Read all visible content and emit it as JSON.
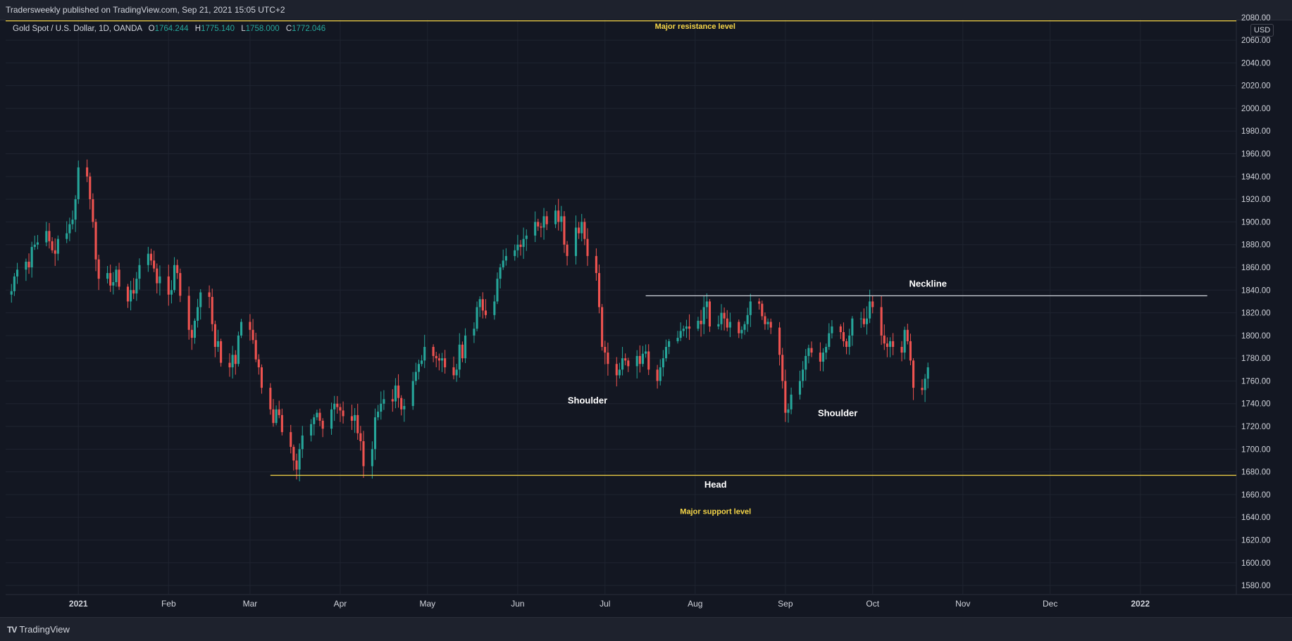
{
  "header": {
    "published_text": "Tradersweekly published on TradingView.com, Sep 21, 2021 15:05 UTC+2"
  },
  "legend": {
    "symbol": "Gold Spot / U.S. Dollar, 1D, OANDA",
    "open_label": "O",
    "open": "1764.244",
    "high_label": "H",
    "high": "1775.140",
    "low_label": "L",
    "low": "1758.000",
    "close_label": "C",
    "close": "1772.046"
  },
  "currency": "USD",
  "footer": {
    "brand": "TradingView"
  },
  "colors": {
    "up": "#26a69a",
    "down": "#ef5350",
    "resistance": "#f5d547",
    "support": "#f5d547",
    "neckline": "#d1d4dc",
    "background": "#131722",
    "grid": "#1f2430"
  },
  "chart_data": {
    "type": "candlestick",
    "title": "",
    "xlabel": "",
    "ylabel": "",
    "ylim": [
      1572,
      2078
    ],
    "xlim": [
      "2020-12-07",
      "2022-02-03"
    ],
    "y_ticks": [
      1580,
      1600,
      1620,
      1640,
      1660,
      1680,
      1700,
      1720,
      1740,
      1760,
      1780,
      1800,
      1820,
      1840,
      1860,
      1880,
      1900,
      1920,
      1940,
      1960,
      1980,
      2000,
      2020,
      2040,
      2060,
      2080
    ],
    "x_ticks": [
      {
        "date": "2021-01-01",
        "label": "2021"
      },
      {
        "date": "2021-02-01",
        "label": "Feb"
      },
      {
        "date": "2021-03-01",
        "label": "Mar"
      },
      {
        "date": "2021-04-01",
        "label": "Apr"
      },
      {
        "date": "2021-05-01",
        "label": "May"
      },
      {
        "date": "2021-06-01",
        "label": "Jun"
      },
      {
        "date": "2021-07-01",
        "label": "Jul"
      },
      {
        "date": "2021-08-01",
        "label": "Aug"
      },
      {
        "date": "2021-09-01",
        "label": "Sep"
      },
      {
        "date": "2021-10-01",
        "label": "Oct"
      },
      {
        "date": "2021-11-01",
        "label": "Nov"
      },
      {
        "date": "2021-12-01",
        "label": "Dec"
      },
      {
        "date": "2022-01-01",
        "label": "2022"
      }
    ],
    "series": [
      {
        "start_date": "2020-12-09",
        "closes": [
          1839,
          1852,
          1858,
          1865,
          1860,
          1878,
          1880,
          1882,
          1892,
          1883,
          1875,
          1872,
          1885,
          1890,
          1898,
          1902,
          1920,
          1948,
          1940,
          1920,
          1900,
          1867,
          1850,
          1855,
          1844,
          1847,
          1858,
          1843,
          1830,
          1840,
          1837,
          1850,
          1862,
          1872,
          1866,
          1859,
          1846,
          1852,
          1836,
          1840,
          1862,
          1855,
          1835,
          1805,
          1798,
          1813,
          1825,
          1838,
          1834,
          1810,
          1790,
          1795,
          1776,
          1772,
          1783,
          1775,
          1800,
          1812,
          1805,
          1796,
          1779,
          1772,
          1754,
          1735,
          1723,
          1735,
          1730,
          1715,
          1702,
          1690,
          1682,
          1700,
          1712,
          1722,
          1728,
          1732,
          1725,
          1718,
          1735,
          1740,
          1737,
          1734,
          1729,
          1725,
          1730,
          1714,
          1707,
          1685,
          1700,
          1728,
          1733,
          1740,
          1744,
          1742,
          1756,
          1745,
          1735,
          1738,
          1760,
          1768,
          1775,
          1778,
          1790,
          1782,
          1780,
          1778,
          1780,
          1772,
          1765,
          1770,
          1792,
          1780,
          1800,
          1806,
          1825,
          1832,
          1822,
          1818,
          1830,
          1850,
          1860,
          1866,
          1870,
          1875,
          1880,
          1878,
          1885,
          1888,
          1900,
          1896,
          1895,
          1905,
          1898,
          1910,
          1900,
          1905,
          1880,
          1870,
          1895,
          1890,
          1900,
          1885,
          1870,
          1855,
          1825,
          1790,
          1785,
          1775,
          1765,
          1770,
          1780,
          1778,
          1773,
          1782,
          1775,
          1784,
          1786,
          1770,
          1760,
          1772,
          1780,
          1790,
          1795,
          1798,
          1804,
          1806,
          1808,
          1806,
          1813,
          1810,
          1825,
          1830,
          1808,
          1810,
          1820,
          1815,
          1807,
          1812,
          1802,
          1805,
          1810,
          1818,
          1830,
          1828,
          1817,
          1810,
          1812,
          1807,
          1783,
          1760,
          1732,
          1735,
          1748,
          1760,
          1770,
          1782,
          1789,
          1785,
          1777,
          1785,
          1790,
          1802,
          1808,
          1803,
          1795,
          1790,
          1800,
          1815,
          1815,
          1810,
          1815,
          1830,
          1825,
          1800,
          1793,
          1790,
          1795,
          1790,
          1785,
          1805,
          1795,
          1778,
          1754,
          1752,
          1762,
          1772
        ]
      },
      {
        "name": "",
        "role": "resistance",
        "y": 2077,
        "x_start": "2020-12-07",
        "x_end": "2022-02-03"
      },
      {
        "name": "",
        "role": "support",
        "y": 1677,
        "x_start": "2021-03-08",
        "x_end": "2022-02-03"
      },
      {
        "name": "",
        "role": "neckline",
        "y": 1835,
        "x_start": "2021-07-15",
        "x_end": "2022-01-24"
      }
    ],
    "annotations": [
      {
        "text": "Major resistance level",
        "date": "2021-08-01",
        "y": 2070,
        "color": "yellow"
      },
      {
        "text": "Neckline",
        "date": "2021-10-20",
        "y": 1843,
        "color": "white"
      },
      {
        "text": "Shoulder",
        "date": "2021-06-25",
        "y": 1740,
        "color": "white"
      },
      {
        "text": "Shoulder",
        "date": "2021-09-19",
        "y": 1729,
        "color": "white"
      },
      {
        "text": "Head",
        "date": "2021-08-08",
        "y": 1666,
        "color": "white"
      },
      {
        "text": "Major support level",
        "date": "2021-08-08",
        "y": 1643,
        "color": "yellow"
      }
    ],
    "grid": true,
    "legend": "top-left"
  }
}
